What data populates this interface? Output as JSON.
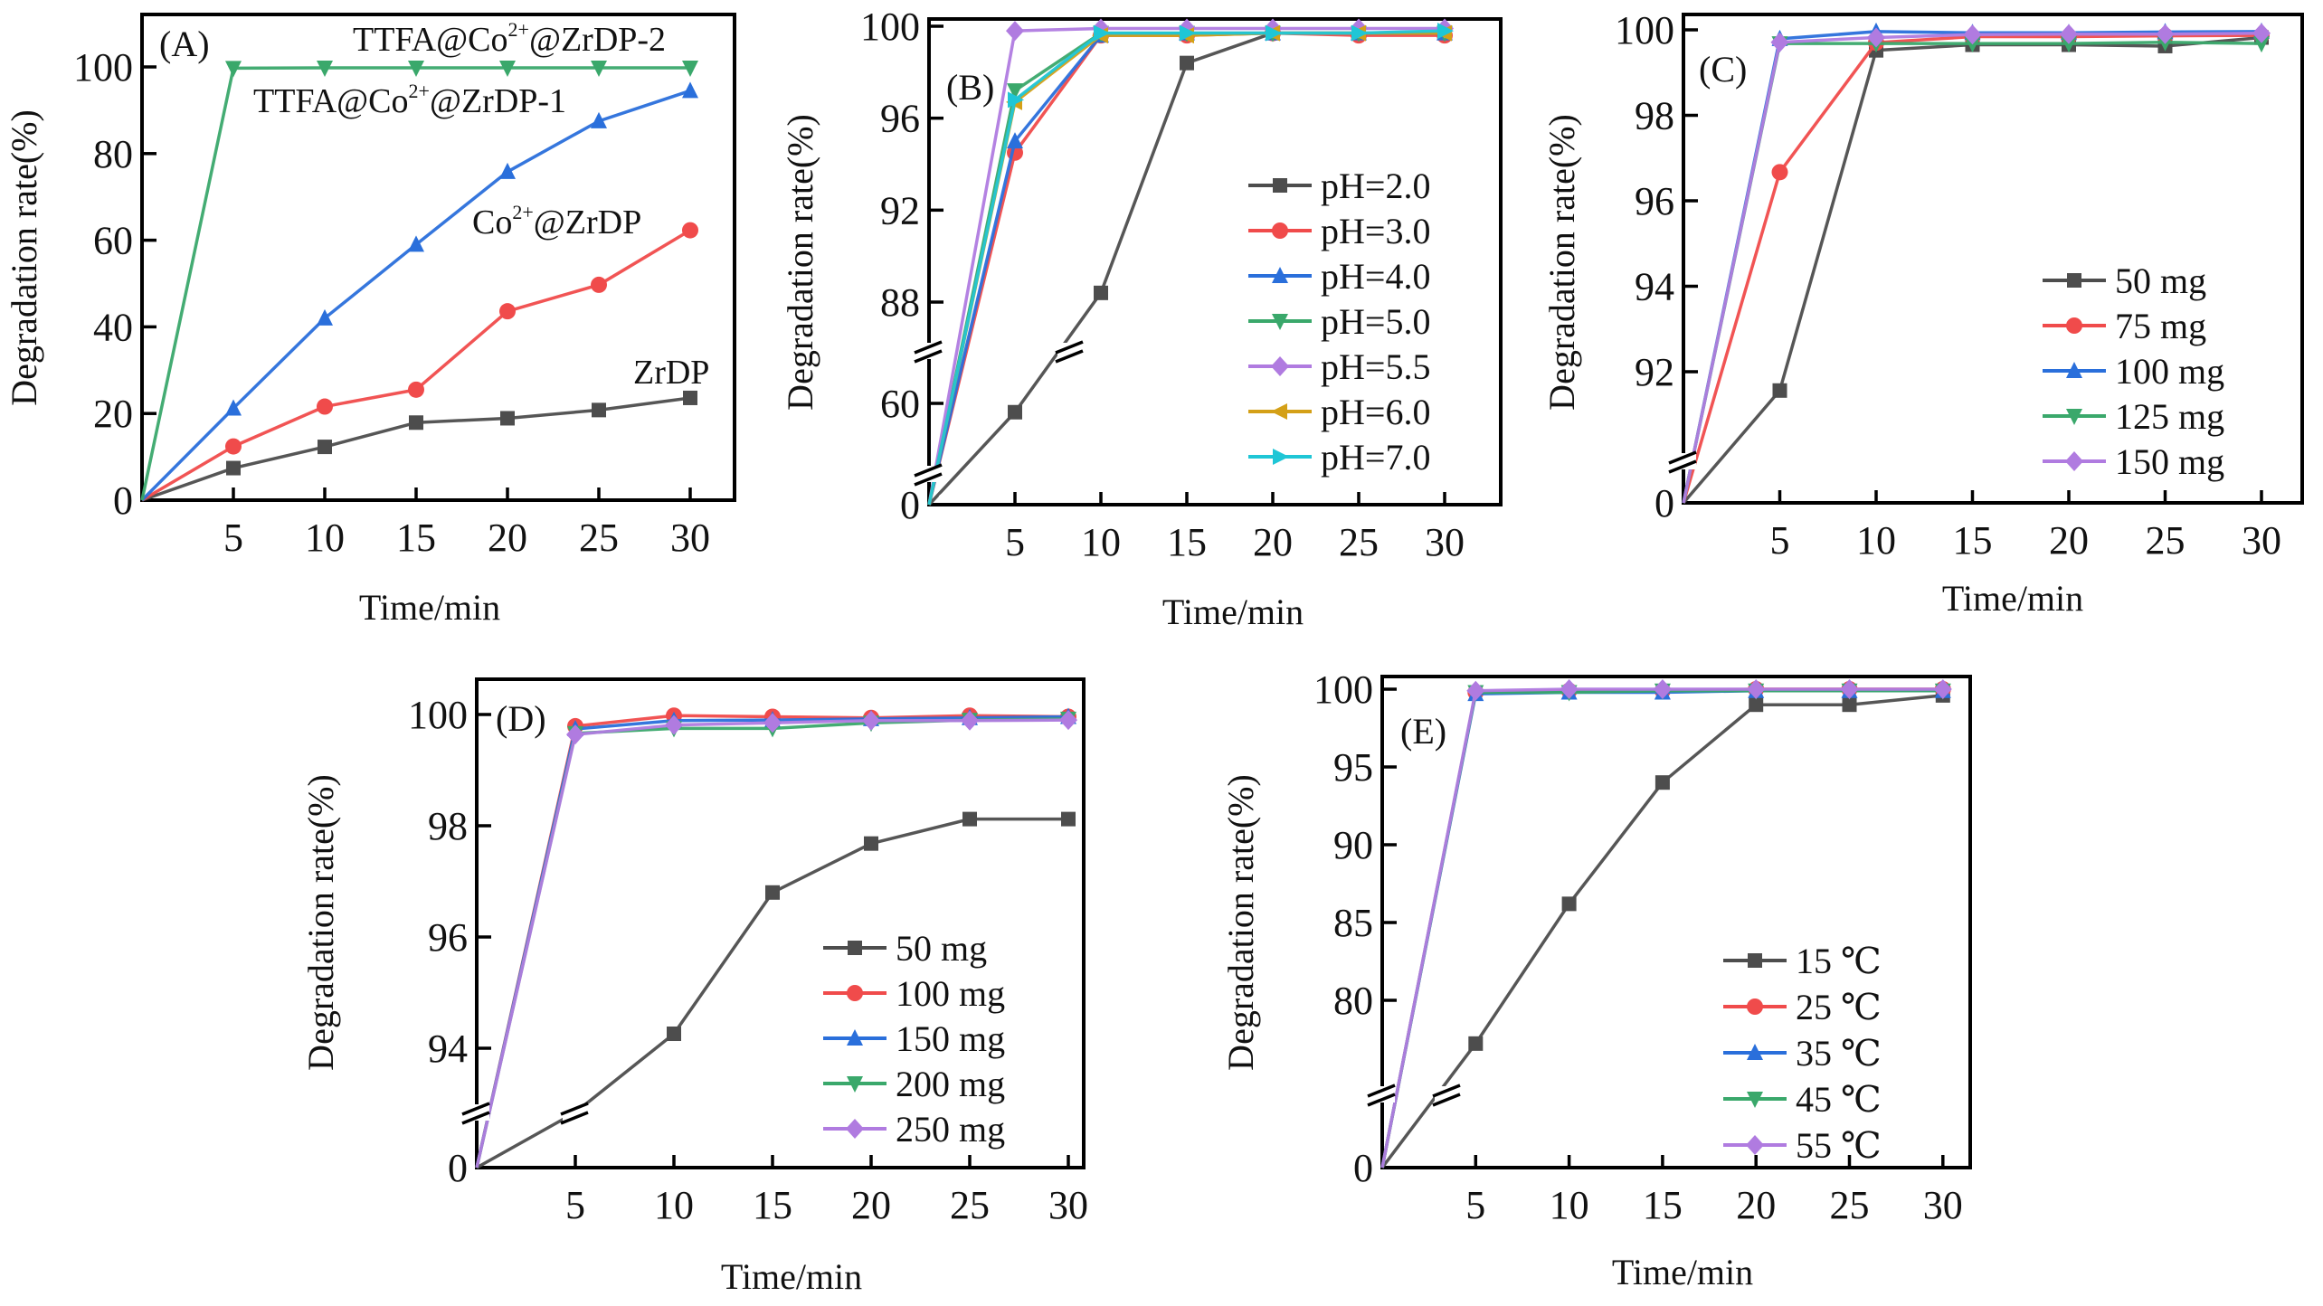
{
  "figure": {
    "panel_count": 5
  },
  "chart_data": [
    {
      "id": "A",
      "type": "line",
      "panel_label": "(A)",
      "xlabel": "Time/min",
      "ylabel": "Degradation rate(%)",
      "x": [
        0,
        5,
        10,
        15,
        20,
        25,
        30
      ],
      "xticks": [
        5,
        10,
        15,
        20,
        25,
        30
      ],
      "xlim": [
        0,
        32.3
      ],
      "yticks": [
        0,
        20,
        40,
        60,
        80,
        100
      ],
      "ytick_labels": [
        "0",
        "20",
        "40",
        "60",
        "80",
        "100"
      ],
      "ylim": [
        0,
        111
      ],
      "axis_break": false,
      "legend": "inline-annotations",
      "annotations": [
        {
          "series": "TTFA@Co2+@ZrDP-2",
          "parts": [
            "TTFA@Co",
            "2+",
            "@ZrDP-2"
          ]
        },
        {
          "series": "TTFA@Co2+@ZrDP-1",
          "parts": [
            "TTFA@Co",
            "2+",
            "@ZrDP-1"
          ]
        },
        {
          "series": "Co2+@ZrDP",
          "parts": [
            "Co",
            "2+",
            "@ZrDP"
          ]
        },
        {
          "series": "ZrDP",
          "parts": [
            "ZrDP",
            "",
            ""
          ]
        }
      ],
      "series": [
        {
          "name": "ZrDP",
          "color": "#4d4d4d",
          "marker": "square",
          "values": [
            0,
            7.4,
            12.3,
            17.9,
            18.9,
            20.8,
            23.6
          ]
        },
        {
          "name": "Co2+@ZrDP",
          "color": "#f04b4b",
          "marker": "circle",
          "values": [
            0,
            12.4,
            21.6,
            25.5,
            43.6,
            49.7,
            62.3
          ]
        },
        {
          "name": "TTFA@Co2+@ZrDP-1",
          "color": "#2a6fdb",
          "marker": "triangle-up",
          "values": [
            0,
            21.2,
            42.0,
            59.0,
            75.8,
            87.5,
            94.5
          ]
        },
        {
          "name": "TTFA@Co2+@ZrDP-2",
          "color": "#3aa86b",
          "marker": "triangle-down",
          "values": [
            0,
            99.7,
            99.8,
            99.8,
            99.8,
            99.8,
            99.8
          ]
        }
      ]
    },
    {
      "id": "B",
      "type": "line",
      "panel_label": "(B)",
      "xlabel": "Time/min",
      "ylabel": "Degradation rate(%)",
      "x": [
        0,
        5,
        10,
        15,
        20,
        25,
        30
      ],
      "xticks": [
        5,
        10,
        15,
        20,
        25,
        30
      ],
      "xlim": [
        0,
        33.3
      ],
      "yticks": [
        0,
        60,
        88,
        92,
        96,
        100
      ],
      "ytick_labels": [
        "0",
        "60",
        "88",
        "92",
        "96",
        "100"
      ],
      "ylim": [
        0,
        100.3
      ],
      "axis_break": true,
      "breaks": [
        20,
        80
      ],
      "legend": "right",
      "series": [
        {
          "name": "pH=2.0",
          "color": "#4d4d4d",
          "marker": "square",
          "values": [
            0,
            55.0,
            88.4,
            98.4,
            99.7,
            99.7,
            99.7
          ]
        },
        {
          "name": "pH=3.0",
          "color": "#f04b4b",
          "marker": "circle",
          "values": [
            0,
            94.5,
            99.6,
            99.6,
            99.7,
            99.6,
            99.6
          ]
        },
        {
          "name": "pH=4.0",
          "color": "#2a6fdb",
          "marker": "triangle-up",
          "values": [
            0,
            95.0,
            99.6,
            99.7,
            99.7,
            99.7,
            99.7
          ]
        },
        {
          "name": "pH=5.0",
          "color": "#3aa86b",
          "marker": "triangle-down",
          "values": [
            0,
            97.2,
            99.7,
            99.7,
            99.7,
            99.7,
            99.7
          ]
        },
        {
          "name": "pH=5.5",
          "color": "#b07be0",
          "marker": "diamond",
          "values": [
            0,
            99.8,
            99.9,
            99.9,
            99.9,
            99.9,
            99.9
          ]
        },
        {
          "name": "pH=6.0",
          "color": "#d4a017",
          "marker": "triangle-left",
          "values": [
            0,
            96.7,
            99.6,
            99.6,
            99.7,
            99.7,
            99.7
          ]
        },
        {
          "name": "pH=7.0",
          "color": "#1fc6d6",
          "marker": "triangle-right",
          "values": [
            0,
            96.8,
            99.7,
            99.7,
            99.7,
            99.7,
            99.8
          ]
        }
      ]
    },
    {
      "id": "C",
      "type": "line",
      "panel_label": "(C)",
      "xlabel": "Time/min",
      "ylabel": "Degradation rate(%)",
      "x": [
        0,
        5,
        10,
        15,
        20,
        25,
        30
      ],
      "xticks": [
        5,
        10,
        15,
        20,
        25,
        30
      ],
      "xlim": [
        0,
        32.1
      ],
      "yticks": [
        0,
        92,
        94,
        96,
        98,
        100
      ],
      "ytick_labels": [
        "0",
        "92",
        "94",
        "96",
        "98",
        "100"
      ],
      "ylim": [
        0,
        100.35
      ],
      "axis_break": true,
      "breaks": [
        90
      ],
      "legend": "right",
      "series": [
        {
          "name": "50 mg",
          "color": "#4d4d4d",
          "marker": "square",
          "values": [
            0,
            91.58,
            99.52,
            99.65,
            99.65,
            99.62,
            99.82
          ]
        },
        {
          "name": "75 mg",
          "color": "#f04b4b",
          "marker": "circle",
          "values": [
            0,
            96.67,
            99.7,
            99.84,
            99.84,
            99.86,
            99.87
          ]
        },
        {
          "name": "100 mg",
          "color": "#2a6fdb",
          "marker": "triangle-up",
          "values": [
            0,
            99.79,
            99.96,
            99.93,
            99.93,
            99.95,
            99.96
          ]
        },
        {
          "name": "125 mg",
          "color": "#3aa86b",
          "marker": "triangle-down",
          "values": [
            0,
            99.68,
            99.68,
            99.68,
            99.68,
            99.71,
            99.68
          ]
        },
        {
          "name": "150 mg",
          "color": "#b07be0",
          "marker": "diamond",
          "values": [
            0,
            99.71,
            99.82,
            99.89,
            99.9,
            99.9,
            99.92
          ]
        }
      ]
    },
    {
      "id": "D",
      "type": "line",
      "panel_label": "(D)",
      "xlabel": "Time/min",
      "ylabel": "Degradation rate(%)",
      "x": [
        0,
        5,
        10,
        15,
        20,
        25,
        30
      ],
      "xticks": [
        5,
        10,
        15,
        20,
        25,
        30
      ],
      "xlim": [
        0,
        30.8
      ],
      "yticks": [
        0,
        94,
        96,
        98,
        100
      ],
      "ytick_labels": [
        "0",
        "94",
        "96",
        "98",
        "100"
      ],
      "ylim": [
        0,
        100.6
      ],
      "axis_break": true,
      "breaks": [
        93
      ],
      "legend": "right",
      "series": [
        {
          "name": "50 mg",
          "color": "#4d4d4d",
          "marker": "none-at-5",
          "values": [
            0,
            93.0,
            94.26,
            96.8,
            97.68,
            98.12,
            98.12
          ]
        },
        {
          "name": "100 mg",
          "color": "#f04b4b",
          "marker": "circle",
          "values": [
            0,
            99.79,
            99.98,
            99.96,
            99.94,
            99.98,
            99.96
          ]
        },
        {
          "name": "150 mg",
          "color": "#2a6fdb",
          "marker": "triangle-up",
          "values": [
            0,
            99.74,
            99.89,
            99.9,
            99.92,
            99.94,
            99.96
          ]
        },
        {
          "name": "200 mg",
          "color": "#3aa86b",
          "marker": "triangle-down",
          "values": [
            0,
            99.66,
            99.75,
            99.75,
            99.85,
            99.9,
            99.92
          ]
        },
        {
          "name": "250 mg",
          "color": "#b07be0",
          "marker": "diamond",
          "values": [
            0,
            99.64,
            99.81,
            99.85,
            99.89,
            99.89,
            99.9
          ]
        }
      ]
    },
    {
      "id": "E",
      "type": "line",
      "panel_label": "(E)",
      "xlabel": "Time/min",
      "ylabel": "Degradation rate(%)",
      "x": [
        0,
        5,
        10,
        15,
        20,
        25,
        30
      ],
      "xticks": [
        5,
        10,
        15,
        20,
        25,
        30
      ],
      "xlim": [
        0,
        31.1
      ],
      "yticks": [
        0,
        80,
        85,
        90,
        95,
        100
      ],
      "ytick_labels": [
        "0",
        "80",
        "85",
        "90",
        "95",
        "100"
      ],
      "ylim": [
        0,
        100.8
      ],
      "axis_break": true,
      "breaks": [
        75
      ],
      "legend": "right",
      "series": [
        {
          "name": "15 ℃",
          "color": "#4d4d4d",
          "marker": "square",
          "values": [
            0,
            77.7,
            86.2,
            94.0,
            99.0,
            99.0,
            99.6
          ]
        },
        {
          "name": "25 ℃",
          "color": "#f04b4b",
          "marker": "circle",
          "values": [
            0,
            99.8,
            99.9,
            99.9,
            100.0,
            100.0,
            100.0
          ]
        },
        {
          "name": "35 ℃",
          "color": "#2a6fdb",
          "marker": "triangle-up",
          "values": [
            0,
            99.7,
            99.8,
            99.8,
            99.9,
            99.9,
            99.9
          ]
        },
        {
          "name": "45 ℃",
          "color": "#3aa86b",
          "marker": "triangle-down",
          "values": [
            0,
            99.8,
            99.8,
            99.9,
            99.9,
            99.9,
            99.9
          ]
        },
        {
          "name": "55 ℃",
          "color": "#b07be0",
          "marker": "diamond",
          "values": [
            0,
            99.9,
            100.0,
            100.0,
            100.0,
            100.0,
            100.0
          ]
        }
      ]
    }
  ]
}
